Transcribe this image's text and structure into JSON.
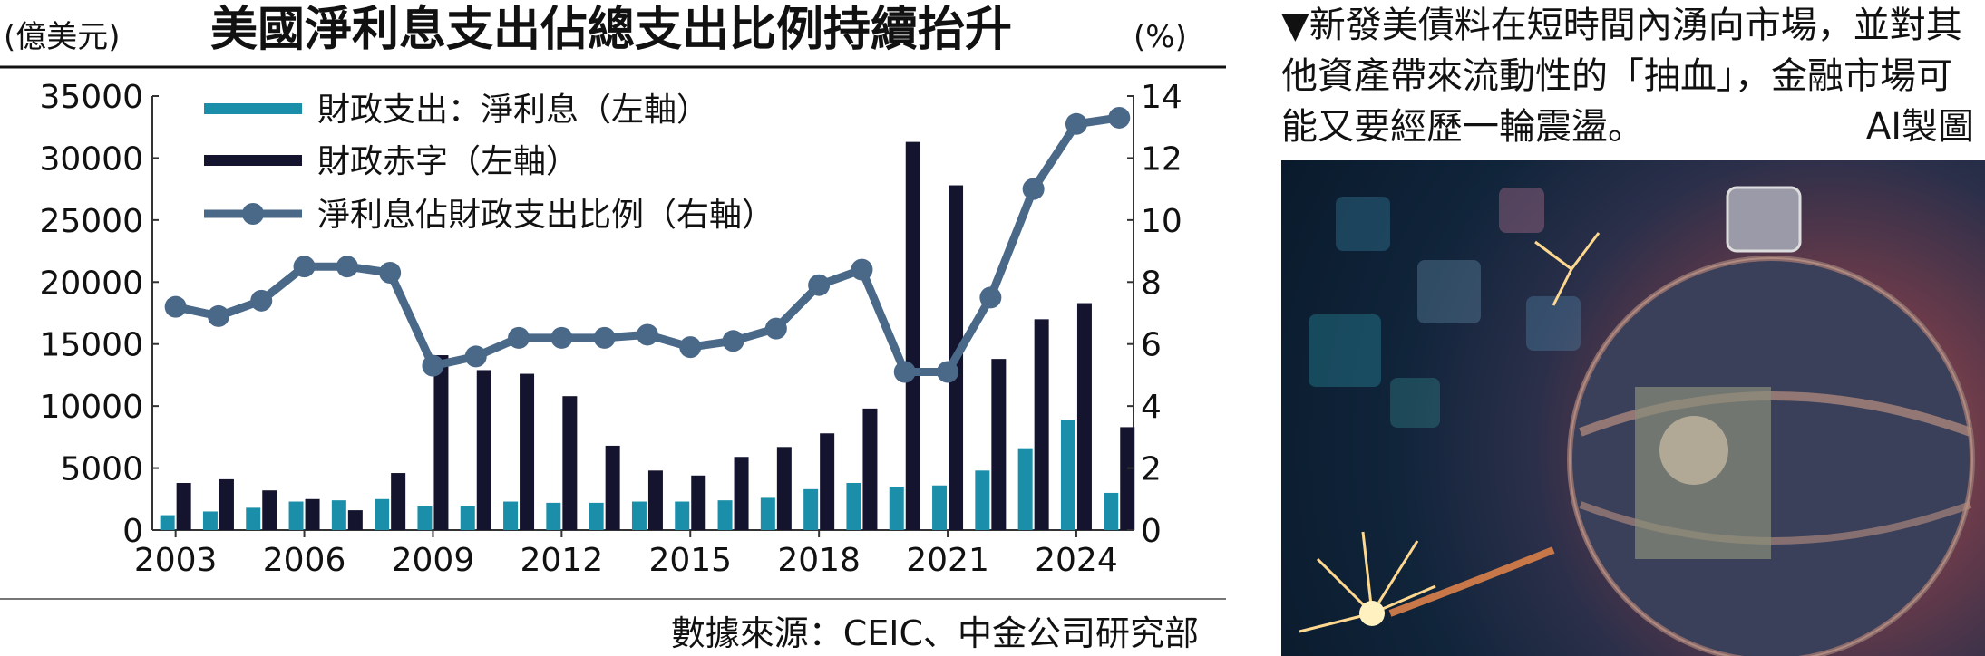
{
  "header": {
    "left_unit": "(億美元)",
    "title": "美國淨利息支出佔總支出比例持續抬升",
    "right_unit": "(%)"
  },
  "source": "數據來源：CEIC、中金公司研究部",
  "caption": {
    "line1": "▼新發美債料在短時間內湧向市場，並對其",
    "line2": "他資產帶來流動性的「抽血」，金融市場可",
    "line3": "能又要經歷一輪震盪。",
    "credit": "AI製圖"
  },
  "photo": {
    "description_icon": "bomb-with-dollar-bills-image"
  },
  "colors": {
    "interest_bar": "#1b8fa9",
    "deficit_bar": "#14142e",
    "ratio_line": "#4a6888",
    "axis": "#333333"
  },
  "chart_data": {
    "type": "bar+line",
    "title": "美國淨利息支出佔總支出比例持續抬升",
    "x": [
      2003,
      2004,
      2005,
      2006,
      2007,
      2008,
      2009,
      2010,
      2011,
      2012,
      2013,
      2014,
      2015,
      2016,
      2017,
      2018,
      2019,
      2020,
      2021,
      2022,
      2023,
      2024,
      2025
    ],
    "x_tick_labels": [
      "2003",
      "2006",
      "2009",
      "2012",
      "2015",
      "2018",
      "2021",
      "2024"
    ],
    "x_tick_values": [
      2003,
      2006,
      2009,
      2012,
      2015,
      2018,
      2021,
      2024
    ],
    "y_left": {
      "label": "(億美元)",
      "range": [
        0,
        35000
      ],
      "ticks": [
        "0",
        "5000",
        "10000",
        "15000",
        "20000",
        "25000",
        "30000",
        "35000"
      ],
      "tick_values": [
        0,
        5000,
        10000,
        15000,
        20000,
        25000,
        30000,
        35000
      ]
    },
    "y_right": {
      "label": "(%)",
      "range": [
        0,
        14
      ],
      "ticks": [
        "0",
        "2",
        "4",
        "6",
        "8",
        "10",
        "12",
        "14"
      ],
      "tick_values": [
        0,
        2,
        4,
        6,
        8,
        10,
        12,
        14
      ]
    },
    "series": [
      {
        "name": "財政支出：淨利息（左軸）",
        "type": "bar",
        "axis": "left",
        "values": [
          1200,
          1500,
          1800,
          2300,
          2400,
          2500,
          1900,
          1900,
          2300,
          2200,
          2200,
          2300,
          2300,
          2400,
          2600,
          3300,
          3800,
          3500,
          3600,
          4800,
          6600,
          8900,
          3000
        ]
      },
      {
        "name": "財政赤字（左軸）",
        "type": "bar",
        "axis": "left",
        "values": [
          3800,
          4100,
          3200,
          2500,
          1600,
          4600,
          14100,
          12900,
          12600,
          10800,
          6800,
          4800,
          4400,
          5900,
          6700,
          7800,
          9800,
          31300,
          27800,
          13800,
          17000,
          18300,
          8300
        ]
      },
      {
        "name": "淨利息佔財政支出比例（右軸）",
        "type": "line",
        "axis": "right",
        "values": [
          7.2,
          6.9,
          7.4,
          8.5,
          8.5,
          8.3,
          5.3,
          5.6,
          6.2,
          6.2,
          6.2,
          6.3,
          5.9,
          6.1,
          6.5,
          7.9,
          8.4,
          5.1,
          5.1,
          7.5,
          11.0,
          13.1,
          13.3
        ]
      }
    ],
    "legend": [
      "財政支出：淨利息（左軸）",
      "財政赤字（左軸）",
      "淨利息佔財政支出比例（右軸）"
    ],
    "legend_position": "top-left inside plot"
  }
}
